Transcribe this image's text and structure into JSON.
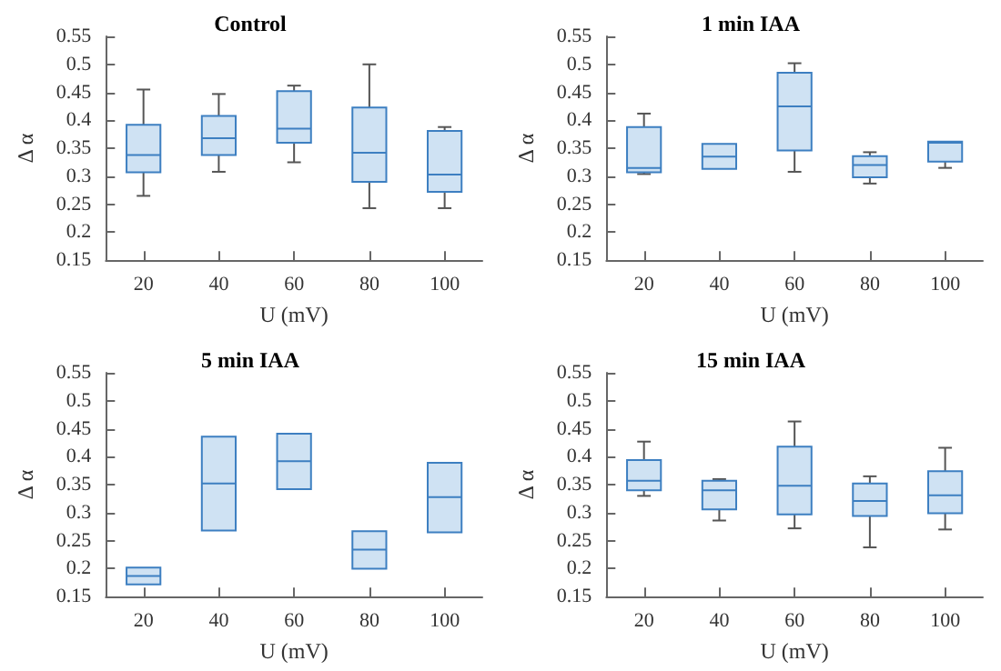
{
  "chart_data": [
    {
      "type": "box",
      "title": "Control",
      "xlabel": "U (mV)",
      "ylabel": "Δ α",
      "categories": [
        "20",
        "40",
        "60",
        "80",
        "100"
      ],
      "color": "#3d7fc1",
      "ylim": [
        0.15,
        0.55
      ],
      "yticks": [
        0.15,
        0.2,
        0.25,
        0.3,
        0.35,
        0.4,
        0.45,
        0.5,
        0.55
      ],
      "grid": false,
      "boxes": [
        {
          "low": 0.265,
          "q1": 0.307,
          "median": 0.338,
          "q3": 0.392,
          "high": 0.455
        },
        {
          "low": 0.308,
          "q1": 0.338,
          "median": 0.368,
          "q3": 0.408,
          "high": 0.447
        },
        {
          "low": 0.325,
          "q1": 0.36,
          "median": 0.385,
          "q3": 0.452,
          "high": 0.462
        },
        {
          "low": 0.243,
          "q1": 0.29,
          "median": 0.342,
          "q3": 0.423,
          "high": 0.5
        },
        {
          "low": 0.243,
          "q1": 0.272,
          "median": 0.303,
          "q3": 0.381,
          "high": 0.388
        }
      ]
    },
    {
      "type": "box",
      "title": "1 min IAA",
      "xlabel": "U (mV)",
      "ylabel": "Δ α",
      "categories": [
        "20",
        "40",
        "60",
        "80",
        "100"
      ],
      "color": "#3d7fc1",
      "ylim": [
        0.15,
        0.55
      ],
      "yticks": [
        0.15,
        0.2,
        0.25,
        0.3,
        0.35,
        0.4,
        0.45,
        0.5,
        0.55
      ],
      "grid": false,
      "boxes": [
        {
          "low": 0.304,
          "q1": 0.307,
          "median": 0.315,
          "q3": 0.388,
          "high": 0.412
        },
        {
          "low": 0.313,
          "q1": 0.313,
          "median": 0.335,
          "q3": 0.358,
          "high": 0.358
        },
        {
          "low": 0.308,
          "q1": 0.346,
          "median": 0.425,
          "q3": 0.485,
          "high": 0.502
        },
        {
          "low": 0.287,
          "q1": 0.298,
          "median": 0.32,
          "q3": 0.336,
          "high": 0.343
        },
        {
          "low": 0.315,
          "q1": 0.326,
          "median": 0.36,
          "q3": 0.362,
          "high": 0.362
        }
      ]
    },
    {
      "type": "box",
      "title": "5 min IAA",
      "xlabel": "U (mV)",
      "ylabel": "Δ α",
      "categories": [
        "20",
        "40",
        "60",
        "80",
        "100"
      ],
      "color": "#3d7fc1",
      "ylim": [
        0.15,
        0.55
      ],
      "yticks": [
        0.15,
        0.2,
        0.25,
        0.3,
        0.35,
        0.4,
        0.45,
        0.5,
        0.55
      ],
      "grid": false,
      "boxes": [
        {
          "low": 0.172,
          "q1": 0.172,
          "median": 0.187,
          "q3": 0.202,
          "high": 0.202
        },
        {
          "low": 0.268,
          "q1": 0.268,
          "median": 0.352,
          "q3": 0.436,
          "high": 0.436
        },
        {
          "low": 0.342,
          "q1": 0.342,
          "median": 0.392,
          "q3": 0.441,
          "high": 0.441
        },
        {
          "low": 0.2,
          "q1": 0.2,
          "median": 0.234,
          "q3": 0.267,
          "high": 0.267
        },
        {
          "low": 0.265,
          "q1": 0.265,
          "median": 0.328,
          "q3": 0.389,
          "high": 0.389
        }
      ]
    },
    {
      "type": "box",
      "title": "15 min IAA",
      "xlabel": "U (mV)",
      "ylabel": "Δ α",
      "categories": [
        "20",
        "40",
        "60",
        "80",
        "100"
      ],
      "color": "#3d7fc1",
      "ylim": [
        0.15,
        0.55
      ],
      "yticks": [
        0.15,
        0.2,
        0.25,
        0.3,
        0.35,
        0.4,
        0.45,
        0.5,
        0.55
      ],
      "grid": false,
      "boxes": [
        {
          "low": 0.33,
          "q1": 0.34,
          "median": 0.357,
          "q3": 0.394,
          "high": 0.427
        },
        {
          "low": 0.286,
          "q1": 0.306,
          "median": 0.34,
          "q3": 0.357,
          "high": 0.36
        },
        {
          "low": 0.272,
          "q1": 0.297,
          "median": 0.348,
          "q3": 0.418,
          "high": 0.463
        },
        {
          "low": 0.238,
          "q1": 0.294,
          "median": 0.321,
          "q3": 0.352,
          "high": 0.365
        },
        {
          "low": 0.27,
          "q1": 0.299,
          "median": 0.331,
          "q3": 0.374,
          "high": 0.416
        }
      ]
    }
  ]
}
